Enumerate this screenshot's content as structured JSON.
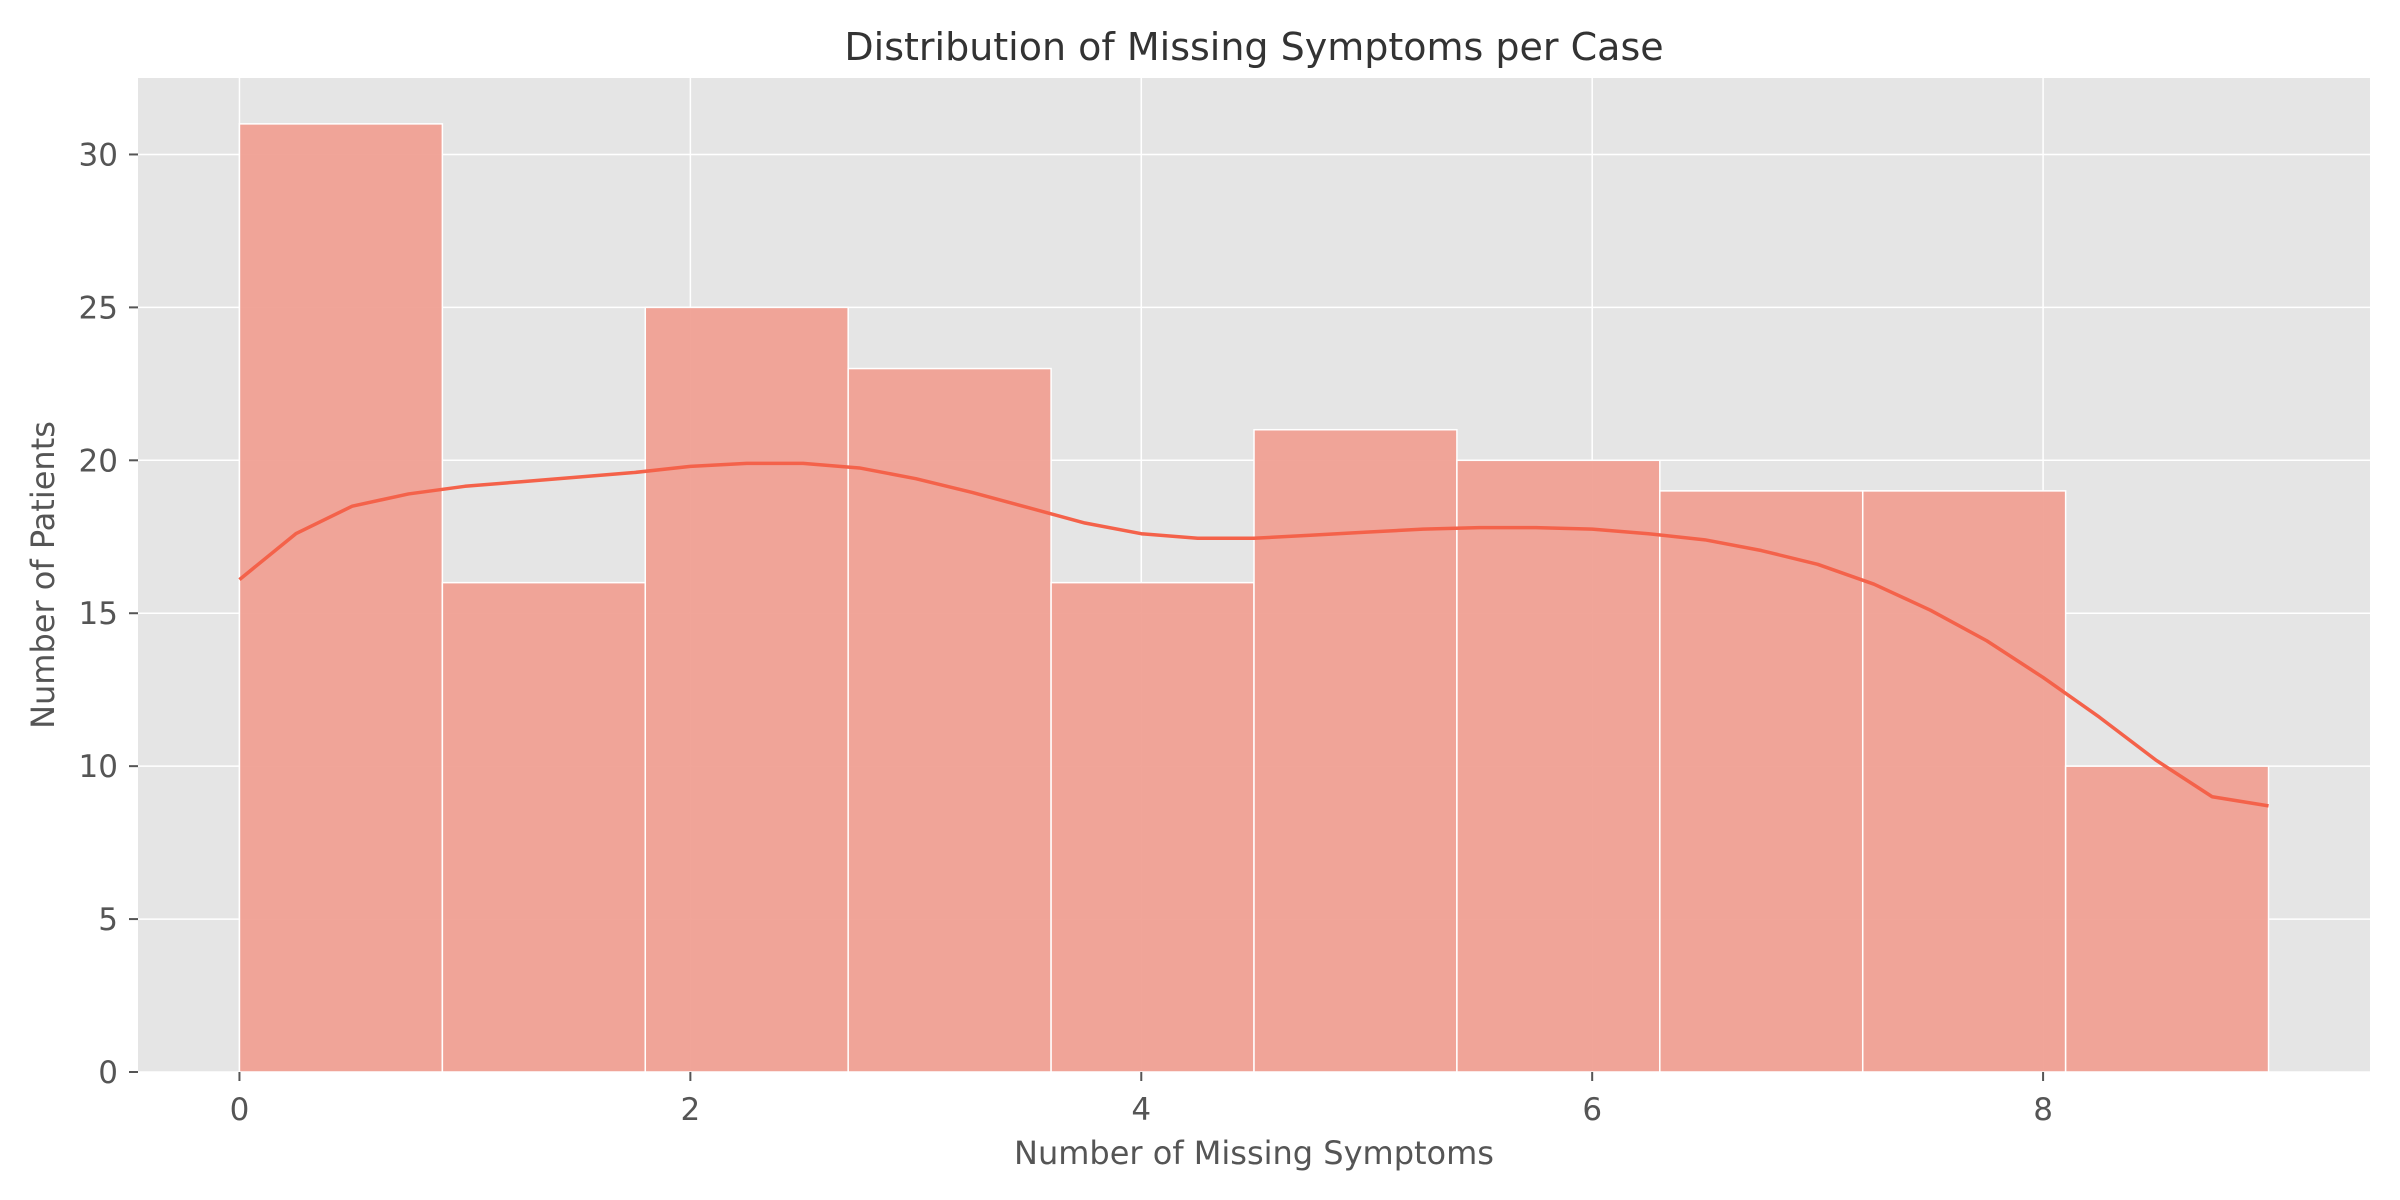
{
  "chart_data": {
    "type": "bar",
    "subtype": "histogram-with-kde",
    "title": "Distribution of Missing Symptoms per Case",
    "xlabel": "Number of Missing Symptoms",
    "ylabel": "Number of Patients",
    "xlim": [
      -0.45,
      9.45
    ],
    "ylim": [
      0,
      32.5
    ],
    "xticks": [
      0,
      2,
      4,
      6,
      8
    ],
    "yticks": [
      0,
      5,
      10,
      15,
      20,
      25,
      30
    ],
    "grid": true,
    "bins": [
      {
        "x0": 0.0,
        "x1": 0.9,
        "count": 31
      },
      {
        "x0": 0.9,
        "x1": 1.8,
        "count": 16
      },
      {
        "x0": 1.8,
        "x1": 2.7,
        "count": 25
      },
      {
        "x0": 2.7,
        "x1": 3.6,
        "count": 23
      },
      {
        "x0": 3.6,
        "x1": 4.5,
        "count": 16
      },
      {
        "x0": 4.5,
        "x1": 5.4,
        "count": 21
      },
      {
        "x0": 5.4,
        "x1": 6.3,
        "count": 20
      },
      {
        "x0": 6.3,
        "x1": 7.2,
        "count": 19
      },
      {
        "x0": 7.2,
        "x1": 8.1,
        "count": 19
      },
      {
        "x0": 8.1,
        "x1": 9.0,
        "count": 10
      }
    ],
    "kde": {
      "x": [
        0,
        0.25,
        0.5,
        0.75,
        1.0,
        1.25,
        1.5,
        1.75,
        2.0,
        2.25,
        2.5,
        2.75,
        3.0,
        3.25,
        3.5,
        3.75,
        4.0,
        4.25,
        4.5,
        4.75,
        5.0,
        5.25,
        5.5,
        5.75,
        6.0,
        6.25,
        6.5,
        6.75,
        7.0,
        7.25,
        7.5,
        7.75,
        8.0,
        8.25,
        8.5,
        8.75,
        9.0
      ],
      "y": [
        16.1,
        17.6,
        18.5,
        18.9,
        19.15,
        19.3,
        19.45,
        19.6,
        19.8,
        19.9,
        19.9,
        19.75,
        19.4,
        18.95,
        18.45,
        17.95,
        17.6,
        17.45,
        17.45,
        17.55,
        17.65,
        17.75,
        17.8,
        17.8,
        17.75,
        17.6,
        17.4,
        17.05,
        16.6,
        15.95,
        15.1,
        14.1,
        12.9,
        11.6,
        10.2,
        9.0,
        8.7
      ]
    },
    "colors": {
      "bars": "#f0a093",
      "kde_line": "#f4624a",
      "plot_background": "#e5e5e5",
      "grid": "#ffffff"
    }
  }
}
